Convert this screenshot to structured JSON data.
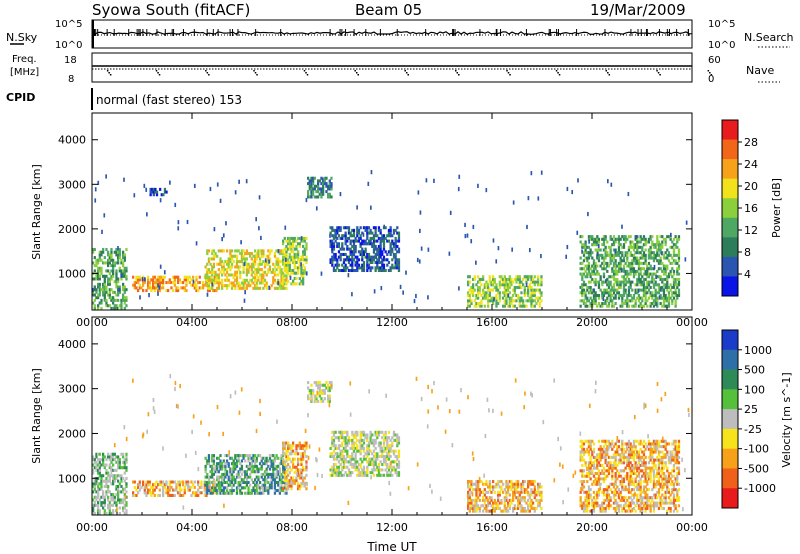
{
  "header": {
    "station": "Syowa South (fitACF)",
    "beam": "Beam 05",
    "date": "19/Mar/2009"
  },
  "summary_panels": {
    "nsky_label": "N.Sky",
    "nsearch_label": "N.Search",
    "nsky_ticks": [
      "10^5",
      "10^0"
    ],
    "nsearch_ticks": [
      "10^5",
      "10^0"
    ],
    "freq_label_1": "Freq.",
    "freq_label_2": "[MHz]",
    "freq_ticks": [
      "18",
      "8"
    ],
    "nave_label": "Nave",
    "nave_ticks": [
      "60",
      "0"
    ],
    "cpid_label": "CPID",
    "cpid_text": "normal (fast stereo) 153"
  },
  "colors": {
    "power_scale": [
      "#0a14e6",
      "#2a55b0",
      "#2e7d5a",
      "#4ea863",
      "#8ccf3c",
      "#f2e21b",
      "#f7a21a",
      "#f2661a",
      "#e81c1c"
    ],
    "velocity_scale": [
      "#1a3cc8",
      "#2f6fa8",
      "#2e8b57",
      "#55c03c",
      "#bdbdbd",
      "#f7e31b",
      "#f7a11a",
      "#f0601a",
      "#e81c1c"
    ]
  },
  "chart_data": [
    {
      "type": "heatmap",
      "title": "",
      "xlabel": "",
      "ylabel": "Slant Range [km]",
      "x_ticks": [
        "00:00",
        "04:00",
        "08:00",
        "12:00",
        "16:00",
        "20:00",
        "00:00"
      ],
      "y_ticks": [
        "1000",
        "2000",
        "3000",
        "4000"
      ],
      "xlim_hours": [
        0,
        24
      ],
      "ylim_km": [
        180,
        4600
      ],
      "colorbar_label": "Power [dB]",
      "colorbar_ticks": [
        "4",
        "8",
        "12",
        "16",
        "20",
        "24",
        "28"
      ],
      "echo_regions": [
        {
          "t0": 0.0,
          "t1": 1.4,
          "r0": 250,
          "r1": 1650,
          "level": 3
        },
        {
          "t0": 1.6,
          "t1": 5.0,
          "r0": 650,
          "r1": 1000,
          "level": 6
        },
        {
          "t0": 4.5,
          "t1": 7.8,
          "r0": 700,
          "r1": 1600,
          "level": 5
        },
        {
          "t0": 7.6,
          "t1": 8.6,
          "r0": 800,
          "r1": 1900,
          "level": 4
        },
        {
          "t0": 8.6,
          "t1": 9.6,
          "r0": 2750,
          "r1": 3250,
          "level": 2
        },
        {
          "t0": 2.3,
          "t1": 3.0,
          "r0": 2800,
          "r1": 2950,
          "level": 1
        },
        {
          "t0": 9.5,
          "t1": 12.3,
          "r0": 1100,
          "r1": 2100,
          "level": 1
        },
        {
          "t0": 15.0,
          "t1": 18.0,
          "r0": 300,
          "r1": 1000,
          "level": 4
        },
        {
          "t0": 19.5,
          "t1": 23.5,
          "r0": 300,
          "r1": 1900,
          "level": 3
        }
      ]
    },
    {
      "type": "heatmap",
      "title": "",
      "xlabel": "Time UT",
      "ylabel": "Slant Range [km]",
      "x_ticks": [
        "00:00",
        "04:00",
        "08:00",
        "12:00",
        "16:00",
        "20:00",
        "00:00"
      ],
      "y_ticks": [
        "1000",
        "2000",
        "3000",
        "4000"
      ],
      "xlim_hours": [
        0,
        24
      ],
      "ylim_km": [
        180,
        4600
      ],
      "colorbar_label": "Velocity [m s^-1]",
      "colorbar_ticks": [
        "1000",
        "500",
        "100",
        "25",
        "-25",
        "-100",
        "-500",
        "-1000"
      ],
      "echo_regions": [
        {
          "t0": 0.0,
          "t1": 1.4,
          "r0": 250,
          "r1": 1650,
          "level": 3
        },
        {
          "t0": 1.6,
          "t1": 5.0,
          "r0": 650,
          "r1": 1000,
          "level": 6
        },
        {
          "t0": 4.5,
          "t1": 7.8,
          "r0": 700,
          "r1": 1600,
          "level": 2
        },
        {
          "t0": 7.6,
          "t1": 8.6,
          "r0": 800,
          "r1": 1900,
          "level": 6
        },
        {
          "t0": 8.6,
          "t1": 9.6,
          "r0": 2750,
          "r1": 3250,
          "level": 4
        },
        {
          "t0": 9.5,
          "t1": 12.3,
          "r0": 1100,
          "r1": 2100,
          "level": 4
        },
        {
          "t0": 15.0,
          "t1": 18.0,
          "r0": 300,
          "r1": 1000,
          "level": 6
        },
        {
          "t0": 19.5,
          "t1": 23.5,
          "r0": 300,
          "r1": 1900,
          "level": 6
        }
      ]
    }
  ]
}
